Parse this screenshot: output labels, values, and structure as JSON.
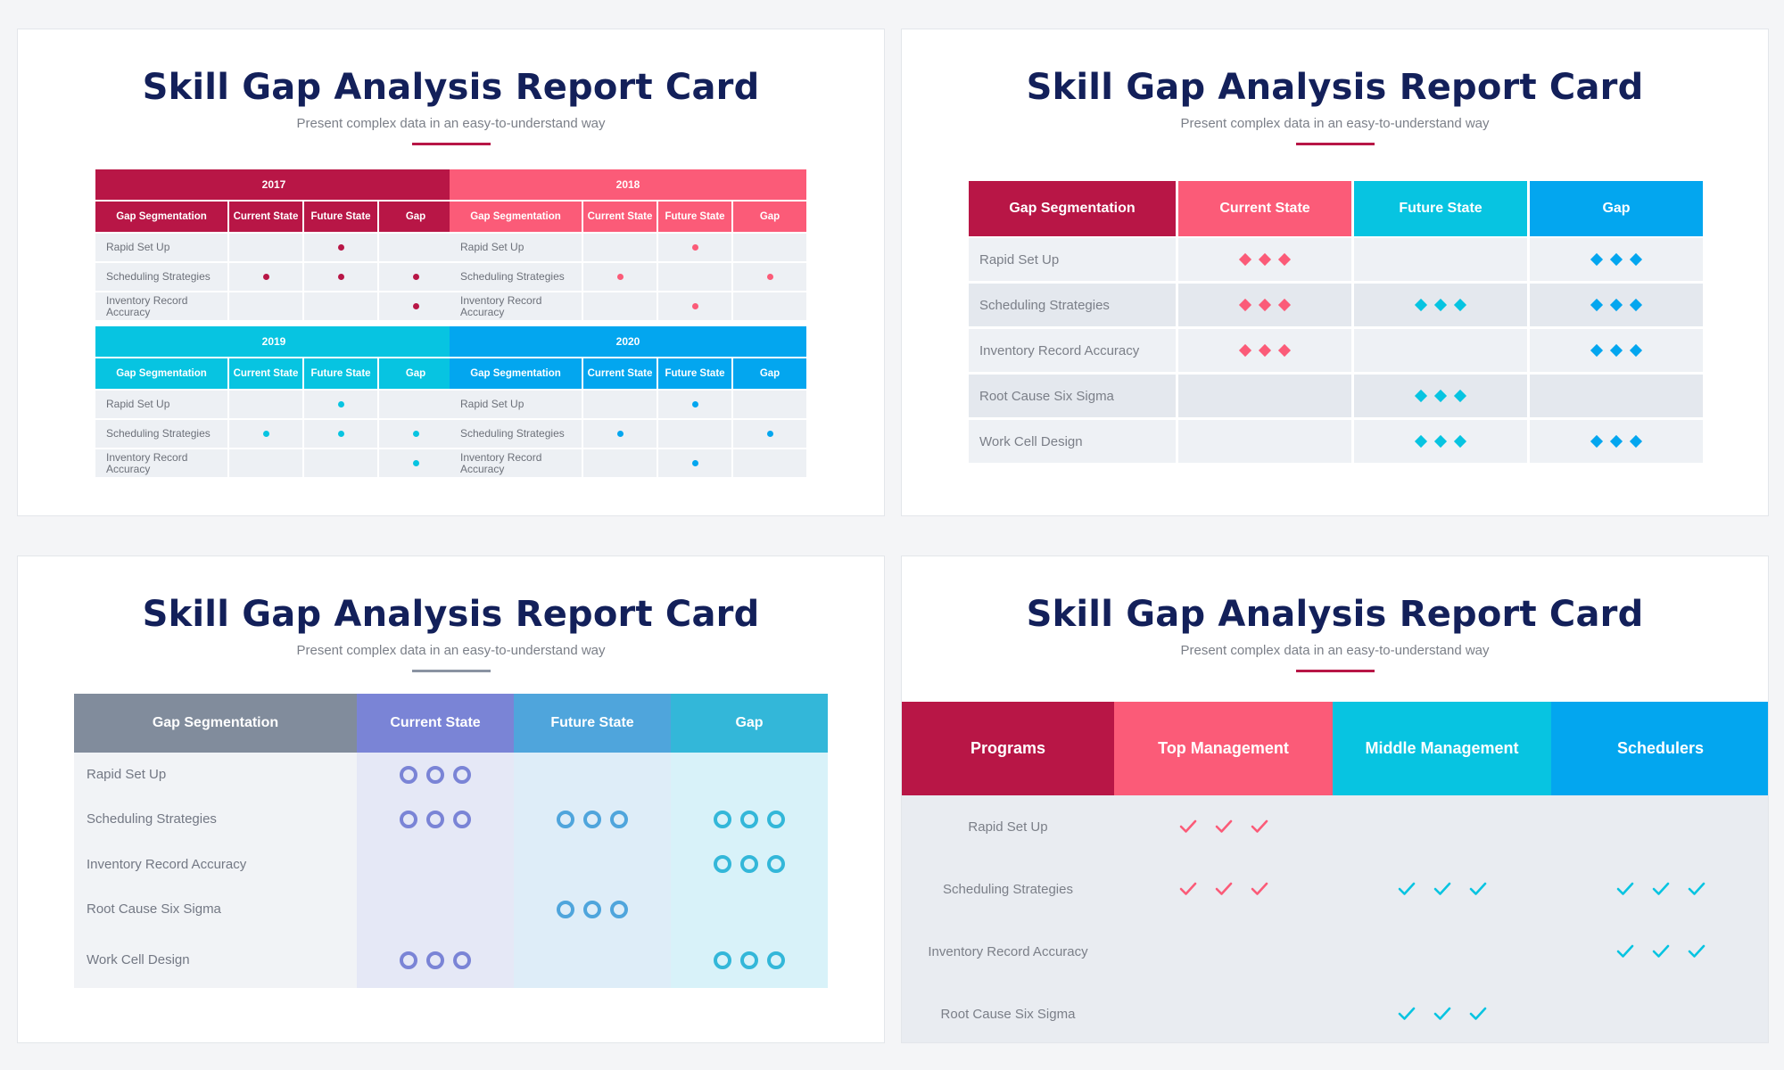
{
  "colors": {
    "crimson": "#b81646",
    "pink": "#fb5b78",
    "cyan": "#07c4e1",
    "blue": "#03a6ef",
    "navy": "#13205a",
    "slate": "#818c9c",
    "periwinkle": "#7a84d6",
    "steel": "#4fa5dc",
    "teal": "#33b7d9"
  },
  "cards": [
    {
      "title": "Skill Gap Analysis Report Card",
      "subtitle": "Present complex data in an easy-to-understand way"
    },
    {
      "title": "Skill Gap Analysis Report Card",
      "subtitle": "Present complex data in an easy-to-understand way"
    },
    {
      "title": "Skill Gap Analysis Report Card",
      "subtitle": "Present complex data in an easy-to-understand way"
    },
    {
      "title": "Skill Gap Analysis Report Card",
      "subtitle": "Present complex data in an easy-to-understand way"
    }
  ],
  "card1": {
    "headers": [
      "Gap Segmentation",
      "Current State",
      "Future State",
      "Gap"
    ],
    "rows": [
      "Rapid Set Up",
      "Scheduling Strategies",
      "Inventory Record Accuracy"
    ],
    "blocks": [
      {
        "year": "2017",
        "color": "crimson",
        "dots": [
          [
            0,
            1,
            0
          ],
          [
            1,
            1,
            1
          ],
          [
            0,
            0,
            1
          ]
        ]
      },
      {
        "year": "2018",
        "color": "pink",
        "dots": [
          [
            0,
            1,
            0
          ],
          [
            1,
            0,
            1
          ],
          [
            0,
            1,
            0
          ]
        ]
      },
      {
        "year": "2019",
        "color": "cyan",
        "dots": [
          [
            0,
            1,
            0
          ],
          [
            1,
            1,
            1
          ],
          [
            0,
            0,
            1
          ]
        ]
      },
      {
        "year": "2020",
        "color": "blue",
        "dots": [
          [
            0,
            1,
            0
          ],
          [
            1,
            0,
            1
          ],
          [
            0,
            1,
            0
          ]
        ]
      }
    ]
  },
  "card2": {
    "headers": [
      "Gap Segmentation",
      "Current State",
      "Future State",
      "Gap"
    ],
    "rows": [
      {
        "label": "Rapid Set Up",
        "marks": [
          1,
          0,
          1
        ]
      },
      {
        "label": "Scheduling Strategies",
        "marks": [
          1,
          1,
          1
        ]
      },
      {
        "label": "Inventory Record Accuracy",
        "marks": [
          1,
          0,
          1
        ]
      },
      {
        "label": "Root Cause Six Sigma",
        "marks": [
          0,
          1,
          0
        ]
      },
      {
        "label": "Work Cell Design",
        "marks": [
          0,
          1,
          1
        ]
      }
    ]
  },
  "card3": {
    "headers": [
      "Gap Segmentation",
      "Current State",
      "Future State",
      "Gap"
    ],
    "rows": [
      {
        "label": "Rapid Set Up",
        "marks": [
          1,
          0,
          0
        ]
      },
      {
        "label": "Scheduling Strategies",
        "marks": [
          1,
          1,
          1
        ]
      },
      {
        "label": "Inventory Record Accuracy",
        "marks": [
          0,
          0,
          1
        ]
      },
      {
        "label": "Root Cause Six Sigma",
        "marks": [
          0,
          1,
          0
        ]
      },
      {
        "label": "Work Cell Design",
        "marks": [
          1,
          0,
          1
        ]
      }
    ]
  },
  "card4": {
    "headers": [
      "Programs",
      "Top Management",
      "Middle Management",
      "Schedulers"
    ],
    "rows": [
      {
        "label": "Rapid Set Up",
        "marks": [
          1,
          0,
          0
        ]
      },
      {
        "label": "Scheduling Strategies",
        "marks": [
          1,
          1,
          1
        ]
      },
      {
        "label": "Inventory Record Accuracy",
        "marks": [
          0,
          0,
          1
        ]
      },
      {
        "label": "Root Cause Six Sigma",
        "marks": [
          0,
          1,
          0
        ]
      }
    ]
  }
}
